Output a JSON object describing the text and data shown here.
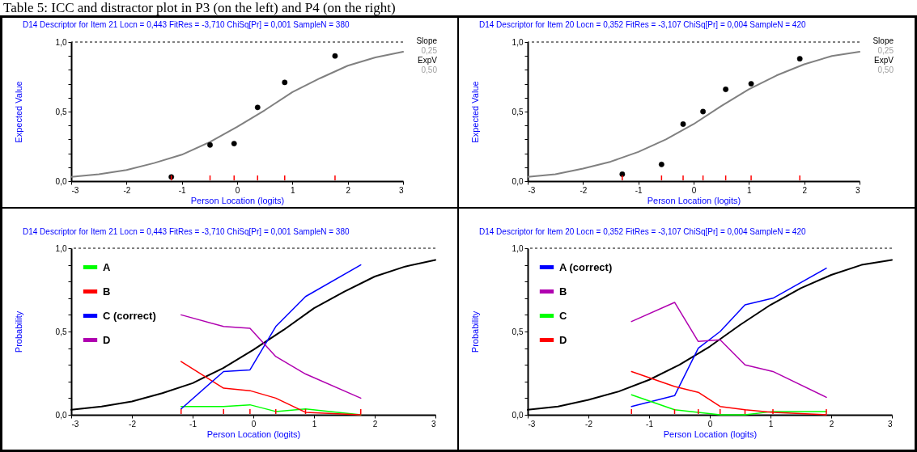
{
  "chart_data": [
    {
      "type": "line",
      "title": "D14    Descriptor for Item 21    Locn = 0,443              FitRes = -3,710    ChiSq[Pr] = 0,001    SampleN = 380",
      "xlabel": "Person Location (logits)",
      "ylabel": "Expected Value",
      "xlim": [
        -3,
        3
      ],
      "xticks": [
        -3,
        -2,
        -1,
        0,
        1,
        2,
        3
      ],
      "ylim": [
        0,
        1
      ],
      "yticks": [
        {
          "value": 0,
          "label": "0,0"
        },
        {
          "value": 0.1,
          "label": null
        },
        {
          "value": 0.2,
          "label": null
        },
        {
          "value": 0.3,
          "label": null
        },
        {
          "value": 0.4,
          "label": null
        },
        {
          "value": 0.5,
          "label": "0,5"
        },
        {
          "value": 0.6,
          "label": null
        },
        {
          "value": 0.7,
          "label": null
        },
        {
          "value": 0.8,
          "label": null
        },
        {
          "value": 0.9,
          "label": null
        },
        {
          "value": 1,
          "label": "1,0"
        }
      ],
      "grid": false,
      "legend": false,
      "ref_lines": [
        {
          "axis": "y",
          "value": 1,
          "line_style": "dashed",
          "color": "#000000"
        }
      ],
      "annotations": [
        "Slope",
        "0,25",
        "ExpV",
        "0,50",
        "Table 5: ICC and distractor plot in P3 (on the left) and P4 (on the right)"
      ],
      "series": [
        {
          "color": "#808080",
          "x": [
            -3,
            -2.5,
            -2,
            -1.5,
            -1,
            -0.5,
            0,
            0.5,
            1,
            1.5,
            2,
            2.5,
            3
          ],
          "values": [
            0.03,
            0.05,
            0.08,
            0.13,
            0.19,
            0.28,
            0.39,
            0.51,
            0.64,
            0.74,
            0.83,
            0.89,
            0.93
          ]
        },
        {
          "type": "scatter",
          "marker": "circle",
          "color": "#000000",
          "x": [
            -1.19,
            -0.49,
            -0.055,
            0.37,
            0.86,
            1.77
          ],
          "values": [
            0.03,
            0.26,
            0.27,
            0.53,
            0.71,
            0.9
          ]
        }
      ]
    },
    {
      "type": "line",
      "title": "D14    Descriptor for Item 20    Locn = 0,352              FitRes = -3,107    ChiSq[Pr] = 0,004    SampleN = 420",
      "xlabel": "Person Location (logits)",
      "ylabel": "Expected Value",
      "xlim": [
        -3,
        3
      ],
      "xticks": [
        -3,
        -2,
        -1,
        0,
        1,
        2,
        3
      ],
      "ylim": [
        0,
        1
      ],
      "yticks": [
        {
          "value": 0,
          "label": "0,0"
        },
        {
          "value": 0.1,
          "label": null
        },
        {
          "value": 0.2,
          "label": null
        },
        {
          "value": 0.3,
          "label": null
        },
        {
          "value": 0.4,
          "label": null
        },
        {
          "value": 0.5,
          "label": "0,5"
        },
        {
          "value": 0.6,
          "label": null
        },
        {
          "value": 0.7,
          "label": null
        },
        {
          "value": 0.8,
          "label": null
        },
        {
          "value": 0.9,
          "label": null
        },
        {
          "value": 1,
          "label": "1,0"
        }
      ],
      "grid": false,
      "legend": false,
      "ref_lines": [
        {
          "axis": "y",
          "value": 1,
          "line_style": "dashed",
          "color": "#000000"
        }
      ],
      "annotations": [
        "Slope",
        "0,25",
        "ExpV",
        "0,50"
      ],
      "series": [
        {
          "color": "#808080",
          "x": [
            -3,
            -2.5,
            -2,
            -1.5,
            -1,
            -0.5,
            0,
            0.5,
            1,
            1.5,
            2,
            2.5,
            3
          ],
          "values": [
            0.03,
            0.05,
            0.09,
            0.14,
            0.21,
            0.3,
            0.41,
            0.54,
            0.66,
            0.76,
            0.84,
            0.9,
            0.93
          ]
        },
        {
          "type": "scatter",
          "marker": "circle",
          "color": "#000000",
          "x": [
            -1.29,
            -0.58,
            -0.19,
            0.17,
            0.58,
            1.04,
            1.92
          ],
          "values": [
            0.05,
            0.12,
            0.41,
            0.5,
            0.66,
            0.7,
            0.88
          ]
        }
      ]
    },
    {
      "type": "line",
      "title": "D14    Descriptor for Item 21    Locn = 0,443              FitRes = -3,710    ChiSq[Pr] = 0,001    SampleN = 380",
      "xlabel": "Person Location (logits)",
      "ylabel": "Probability",
      "xlim": [
        -3,
        3
      ],
      "xticks": [
        -3,
        -2,
        -1,
        0,
        1,
        2,
        3
      ],
      "ylim": [
        0,
        1
      ],
      "yticks": [
        {
          "value": 0,
          "label": "0,0"
        },
        {
          "value": 0.1,
          "label": null
        },
        {
          "value": 0.2,
          "label": null
        },
        {
          "value": 0.3,
          "label": null
        },
        {
          "value": 0.4,
          "label": null
        },
        {
          "value": 0.5,
          "label": "0,5"
        },
        {
          "value": 0.6,
          "label": null
        },
        {
          "value": 0.7,
          "label": null
        },
        {
          "value": 0.8,
          "label": null
        },
        {
          "value": 0.9,
          "label": null
        },
        {
          "value": 1,
          "label": "1,0"
        }
      ],
      "grid": false,
      "legend": "top left",
      "ref_lines": [
        {
          "axis": "y",
          "value": 1,
          "line_style": "dashed",
          "color": "#000000"
        }
      ],
      "series": [
        {
          "color": "#000000",
          "x": [
            -3,
            -2.5,
            -2,
            -1.5,
            -1,
            -0.5,
            0,
            0.5,
            1,
            1.5,
            2,
            2.5,
            3
          ],
          "values": [
            0.03,
            0.05,
            0.08,
            0.13,
            0.19,
            0.28,
            0.39,
            0.51,
            0.64,
            0.74,
            0.83,
            0.89,
            0.93
          ]
        },
        {
          "name": "A",
          "color": "#00ff00",
          "x": [
            -1.19,
            -0.49,
            -0.055,
            0.37,
            0.86,
            1.77
          ],
          "values": [
            0.05,
            0.05,
            0.06,
            0.02,
            0.035,
            0
          ]
        },
        {
          "name": "B",
          "color": "#ff0000",
          "x": [
            -1.19,
            -0.49,
            -0.055,
            0.37,
            0.86,
            1.77
          ],
          "values": [
            0.32,
            0.16,
            0.145,
            0.1,
            0.015,
            0
          ]
        },
        {
          "name": "C (correct)",
          "color": "#0000ff",
          "x": [
            -1.19,
            -0.49,
            -0.055,
            0.37,
            0.86,
            1.77
          ],
          "values": [
            0.035,
            0.26,
            0.27,
            0.53,
            0.71,
            0.9
          ]
        },
        {
          "name": "D",
          "color": "#b000b0",
          "x": [
            -1.19,
            -0.49,
            -0.055,
            0.37,
            0.86,
            1.77
          ],
          "values": [
            0.6,
            0.53,
            0.52,
            0.35,
            0.245,
            0.1
          ]
        }
      ]
    },
    {
      "type": "line",
      "title": "D14    Descriptor for Item 20    Locn = 0,352              FitRes = -3,107    ChiSq[Pr] = 0,004    SampleN = 420",
      "xlabel": "Person Location (logits)",
      "ylabel": "Probability",
      "xlim": [
        -3,
        3
      ],
      "xticks": [
        -3,
        -2,
        -1,
        0,
        1,
        2,
        3
      ],
      "ylim": [
        0,
        1
      ],
      "yticks": [
        {
          "value": 0,
          "label": "0,0"
        },
        {
          "value": 0.1,
          "label": null
        },
        {
          "value": 0.2,
          "label": null
        },
        {
          "value": 0.3,
          "label": null
        },
        {
          "value": 0.4,
          "label": null
        },
        {
          "value": 0.5,
          "label": "0,5"
        },
        {
          "value": 0.6,
          "label": null
        },
        {
          "value": 0.7,
          "label": null
        },
        {
          "value": 0.8,
          "label": null
        },
        {
          "value": 0.9,
          "label": null
        },
        {
          "value": 1,
          "label": "1,0"
        }
      ],
      "grid": false,
      "legend": "top left",
      "ref_lines": [
        {
          "axis": "y",
          "value": 1,
          "line_style": "dashed",
          "color": "#000000"
        }
      ],
      "series": [
        {
          "color": "#000000",
          "x": [
            -3,
            -2.5,
            -2,
            -1.5,
            -1,
            -0.5,
            0,
            0.5,
            1,
            1.5,
            2,
            2.5,
            3
          ],
          "values": [
            0.03,
            0.05,
            0.09,
            0.14,
            0.21,
            0.3,
            0.41,
            0.54,
            0.66,
            0.76,
            0.84,
            0.9,
            0.93
          ]
        },
        {
          "name": "A (correct)",
          "color": "#0000ff",
          "x": [
            -1.29,
            -0.58,
            -0.19,
            0.17,
            0.58,
            1.04,
            1.92
          ],
          "values": [
            0.05,
            0.115,
            0.4,
            0.5,
            0.66,
            0.7,
            0.88
          ]
        },
        {
          "name": "B",
          "color": "#b000b0",
          "x": [
            -1.29,
            -0.58,
            -0.19,
            0.17,
            0.58,
            1.04,
            1.92
          ],
          "values": [
            0.56,
            0.675,
            0.44,
            0.45,
            0.3,
            0.26,
            0.105
          ]
        },
        {
          "name": "C",
          "color": "#00ff00",
          "x": [
            -1.29,
            -0.58,
            -0.19,
            0.17,
            0.58,
            1.04,
            1.92
          ],
          "values": [
            0.12,
            0.03,
            0.015,
            0,
            0,
            0.02,
            0.02
          ]
        },
        {
          "name": "D",
          "color": "#ff0000",
          "x": [
            -1.29,
            -0.58,
            -0.19,
            0.17,
            0.58,
            1.04,
            1.92
          ],
          "values": [
            0.26,
            0.17,
            0.135,
            0.05,
            0.03,
            0.015,
            0
          ]
        }
      ]
    }
  ]
}
